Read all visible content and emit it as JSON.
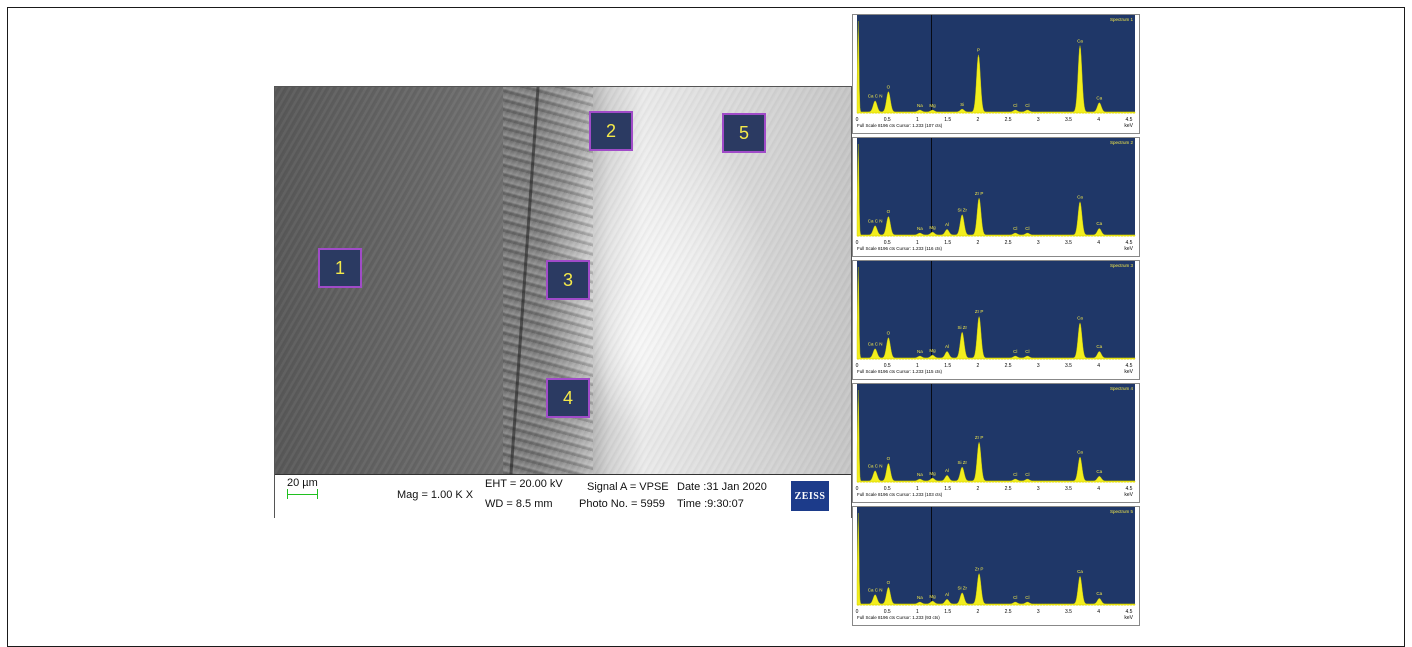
{
  "micrograph": {
    "regions": [
      "1",
      "2",
      "3",
      "4",
      "5"
    ],
    "info": {
      "scale_bar": "20 µm",
      "mag": "Mag =  1.00 K X",
      "eht": "EHT = 20.00 kV",
      "wd": "WD =  8.5 mm",
      "signal": "Signal A = VPSE",
      "photo_no": "Photo No. = 5959",
      "date": "Date :31 Jan 2020",
      "time": "Time :9:30:07",
      "logo": "ZEISS"
    }
  },
  "chart_data": [
    {
      "type": "line",
      "title": "Spectrum 1",
      "xlabel": "keV",
      "xlim": [
        0,
        4.6
      ],
      "x_ticks": [
        "0",
        "0.5",
        "1",
        "1.5",
        "2",
        "2.5",
        "3",
        "3.5",
        "4",
        "4.5"
      ],
      "footer": "Full Scale 8196 cts Cursor: 1.233  (107 cts)",
      "peaks": [
        {
          "label": "",
          "keV": 0.02,
          "rel": 1.0
        },
        {
          "label": "Ca C N",
          "keV": 0.3,
          "rel": 0.12
        },
        {
          "label": "O",
          "keV": 0.52,
          "rel": 0.22
        },
        {
          "label": "Na",
          "keV": 1.04,
          "rel": 0.02
        },
        {
          "label": "Mg",
          "keV": 1.25,
          "rel": 0.02
        },
        {
          "label": "Si",
          "keV": 1.74,
          "rel": 0.03
        },
        {
          "label": "P",
          "keV": 2.01,
          "rel": 0.62
        },
        {
          "label": "Cl",
          "keV": 2.62,
          "rel": 0.02
        },
        {
          "label": "Cl",
          "keV": 2.82,
          "rel": 0.02
        },
        {
          "label": "Ca",
          "keV": 3.69,
          "rel": 0.72
        },
        {
          "label": "Ca",
          "keV": 4.01,
          "rel": 0.1
        }
      ]
    },
    {
      "type": "line",
      "title": "Spectrum 2",
      "xlabel": "keV",
      "xlim": [
        0,
        4.6
      ],
      "x_ticks": [
        "0",
        "0.5",
        "1",
        "1.5",
        "2",
        "2.5",
        "3",
        "3.5",
        "4",
        "4.5"
      ],
      "footer": "Full Scale 8196 cts Cursor: 1.233  (116 cts)",
      "peaks": [
        {
          "label": "",
          "keV": 0.02,
          "rel": 1.0
        },
        {
          "label": "Ca C N",
          "keV": 0.3,
          "rel": 0.1
        },
        {
          "label": "O",
          "keV": 0.52,
          "rel": 0.2
        },
        {
          "label": "Na",
          "keV": 1.04,
          "rel": 0.02
        },
        {
          "label": "Mg",
          "keV": 1.25,
          "rel": 0.03
        },
        {
          "label": "Al",
          "keV": 1.49,
          "rel": 0.06
        },
        {
          "label": "Si Zr",
          "keV": 1.74,
          "rel": 0.22
        },
        {
          "label": "Zr P",
          "keV": 2.02,
          "rel": 0.4
        },
        {
          "label": "Cl",
          "keV": 2.62,
          "rel": 0.02
        },
        {
          "label": "Cl",
          "keV": 2.82,
          "rel": 0.02
        },
        {
          "label": "Ca",
          "keV": 3.69,
          "rel": 0.36
        },
        {
          "label": "Ca",
          "keV": 4.01,
          "rel": 0.07
        }
      ]
    },
    {
      "type": "line",
      "title": "Spectrum 3",
      "xlabel": "keV",
      "xlim": [
        0,
        4.6
      ],
      "x_ticks": [
        "0",
        "0.5",
        "1",
        "1.5",
        "2",
        "2.5",
        "3",
        "3.5",
        "4",
        "4.5"
      ],
      "footer": "Full Scale 8196 cts Cursor: 1.233  (115 cts)",
      "peaks": [
        {
          "label": "",
          "keV": 0.02,
          "rel": 1.0
        },
        {
          "label": "Ca C N",
          "keV": 0.3,
          "rel": 0.1
        },
        {
          "label": "O",
          "keV": 0.52,
          "rel": 0.22
        },
        {
          "label": "Na",
          "keV": 1.04,
          "rel": 0.02
        },
        {
          "label": "Mg",
          "keV": 1.25,
          "rel": 0.03
        },
        {
          "label": "Al",
          "keV": 1.49,
          "rel": 0.07
        },
        {
          "label": "Si Zr",
          "keV": 1.74,
          "rel": 0.28
        },
        {
          "label": "Zr P",
          "keV": 2.02,
          "rel": 0.45
        },
        {
          "label": "Cl",
          "keV": 2.62,
          "rel": 0.02
        },
        {
          "label": "Cl",
          "keV": 2.82,
          "rel": 0.02
        },
        {
          "label": "Ca",
          "keV": 3.69,
          "rel": 0.38
        },
        {
          "label": "Ca",
          "keV": 4.01,
          "rel": 0.07
        }
      ]
    },
    {
      "type": "line",
      "title": "Spectrum 4",
      "xlabel": "keV",
      "xlim": [
        0,
        4.6
      ],
      "x_ticks": [
        "0",
        "0.5",
        "1",
        "1.5",
        "2",
        "2.5",
        "3",
        "3.5",
        "4",
        "4.5"
      ],
      "footer": "Full Scale 8196 cts Cursor: 1.233  (103 cts)",
      "peaks": [
        {
          "label": "",
          "keV": 0.02,
          "rel": 1.0
        },
        {
          "label": "Ca C N",
          "keV": 0.3,
          "rel": 0.11
        },
        {
          "label": "O",
          "keV": 0.52,
          "rel": 0.19
        },
        {
          "label": "Na",
          "keV": 1.04,
          "rel": 0.02
        },
        {
          "label": "Mg",
          "keV": 1.25,
          "rel": 0.03
        },
        {
          "label": "Al",
          "keV": 1.49,
          "rel": 0.06
        },
        {
          "label": "Si Zr",
          "keV": 1.74,
          "rel": 0.15
        },
        {
          "label": "Zr P",
          "keV": 2.02,
          "rel": 0.42
        },
        {
          "label": "Cl",
          "keV": 2.62,
          "rel": 0.02
        },
        {
          "label": "Cl",
          "keV": 2.82,
          "rel": 0.02
        },
        {
          "label": "Ca",
          "keV": 3.69,
          "rel": 0.26
        },
        {
          "label": "Ca",
          "keV": 4.01,
          "rel": 0.05
        }
      ]
    },
    {
      "type": "line",
      "title": "Spectrum 5",
      "xlabel": "keV",
      "xlim": [
        0,
        4.6
      ],
      "x_ticks": [
        "0",
        "0.5",
        "1",
        "1.5",
        "2",
        "2.5",
        "3",
        "3.5",
        "4",
        "4.5"
      ],
      "footer": "Full Scale 8196 cts Cursor: 1.233  (93 cts)",
      "peaks": [
        {
          "label": "",
          "keV": 0.02,
          "rel": 1.0
        },
        {
          "label": "Ca C N",
          "keV": 0.3,
          "rel": 0.1
        },
        {
          "label": "O",
          "keV": 0.52,
          "rel": 0.18
        },
        {
          "label": "Na",
          "keV": 1.04,
          "rel": 0.02
        },
        {
          "label": "Mg",
          "keV": 1.25,
          "rel": 0.03
        },
        {
          "label": "Al",
          "keV": 1.49,
          "rel": 0.05
        },
        {
          "label": "Si Zr",
          "keV": 1.74,
          "rel": 0.12
        },
        {
          "label": "Zr P",
          "keV": 2.02,
          "rel": 0.33
        },
        {
          "label": "Cl",
          "keV": 2.62,
          "rel": 0.02
        },
        {
          "label": "Cl",
          "keV": 2.82,
          "rel": 0.02
        },
        {
          "label": "Ca",
          "keV": 3.69,
          "rel": 0.3
        },
        {
          "label": "Ca",
          "keV": 4.01,
          "rel": 0.06
        }
      ]
    }
  ],
  "colors": {
    "spectrum_bg": "#1f3768",
    "peak_fill": "#f2ee1e",
    "label_color": "#f4e94a",
    "roi_fill": "#2b3a62",
    "roi_border": "#a04bc8"
  }
}
